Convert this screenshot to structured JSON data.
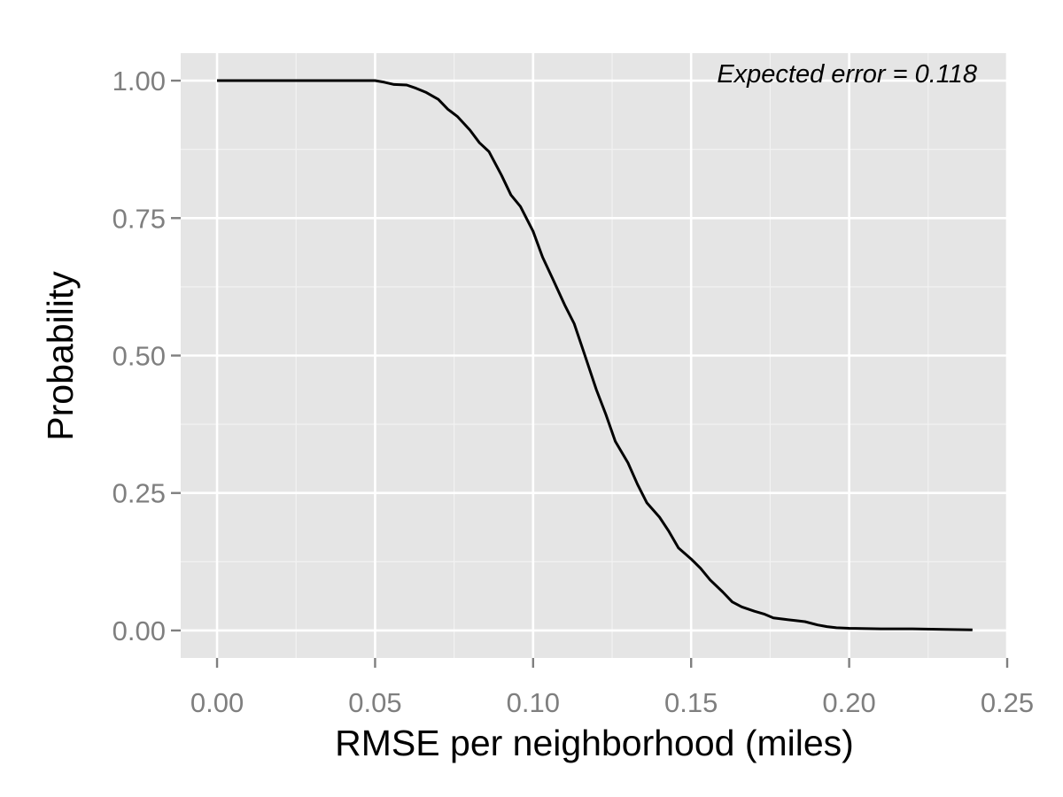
{
  "chart_data": {
    "type": "line",
    "title": "",
    "xlabel": "RMSE per neighborhood (miles)",
    "ylabel": "Probability",
    "xlim": [
      -0.0115,
      0.25
    ],
    "ylim": [
      -0.05,
      1.05
    ],
    "x_ticks": [
      0.0,
      0.05,
      0.1,
      0.15,
      0.2,
      0.25
    ],
    "x_tick_labels": [
      "0.00",
      "0.05",
      "0.10",
      "0.15",
      "0.20",
      "0.25"
    ],
    "y_ticks": [
      0.0,
      0.25,
      0.5,
      0.75,
      1.0
    ],
    "y_tick_labels": [
      "0.00",
      "0.25",
      "0.50",
      "0.75",
      "1.00"
    ],
    "grid": true,
    "annotation": "Expected error = 0.118",
    "series": [
      {
        "x": [
          0.0,
          0.05,
          0.053,
          0.056,
          0.06,
          0.063,
          0.066,
          0.07,
          0.073,
          0.076,
          0.08,
          0.083,
          0.086,
          0.09,
          0.093,
          0.096,
          0.1,
          0.103,
          0.106,
          0.11,
          0.113,
          0.116,
          0.12,
          0.123,
          0.126,
          0.13,
          0.133,
          0.136,
          0.14,
          0.143,
          0.146,
          0.15,
          0.153,
          0.156,
          0.16,
          0.163,
          0.166,
          0.17,
          0.173,
          0.176,
          0.18,
          0.183,
          0.186,
          0.19,
          0.193,
          0.196,
          0.2,
          0.21,
          0.22,
          0.23,
          0.239
        ],
        "y": [
          1.0,
          1.0,
          0.997,
          0.993,
          0.992,
          0.986,
          0.979,
          0.966,
          0.948,
          0.935,
          0.91,
          0.887,
          0.871,
          0.828,
          0.792,
          0.771,
          0.726,
          0.679,
          0.642,
          0.592,
          0.558,
          0.507,
          0.438,
          0.393,
          0.344,
          0.305,
          0.266,
          0.232,
          0.206,
          0.18,
          0.15,
          0.13,
          0.113,
          0.092,
          0.07,
          0.052,
          0.043,
          0.035,
          0.03,
          0.023,
          0.02,
          0.018,
          0.016,
          0.01,
          0.007,
          0.005,
          0.004,
          0.003,
          0.003,
          0.002,
          0.001
        ]
      }
    ]
  },
  "colors": {
    "panel_background": "#e5e5e5",
    "major_grid": "#ffffff",
    "minor_grid": "#f2f2f2",
    "line": "#000000",
    "tick_text": "#7f7f7f",
    "tick_mark": "#7f7f7f"
  }
}
